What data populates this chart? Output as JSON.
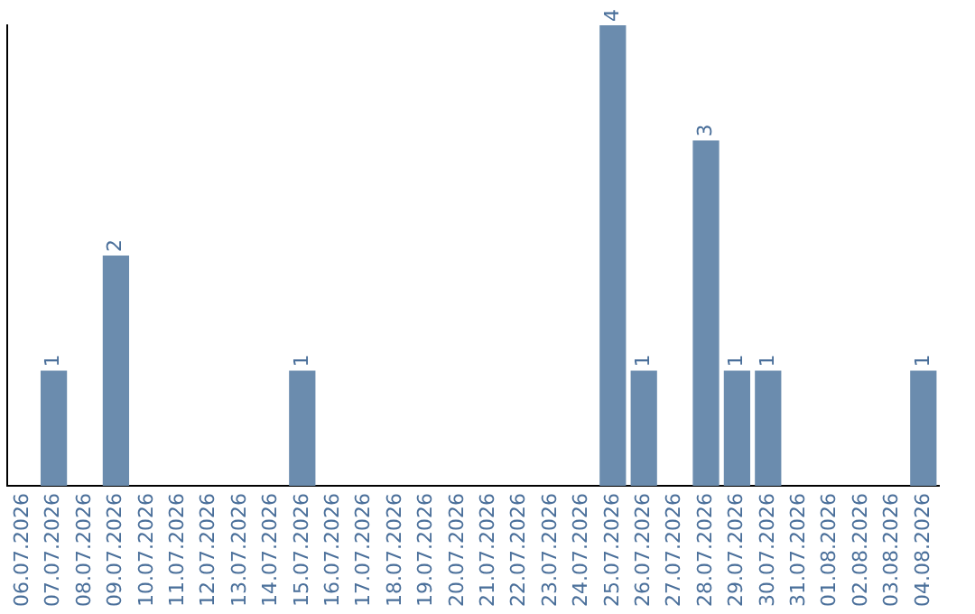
{
  "chart_data": {
    "type": "bar",
    "categories": [
      "06.07.2026",
      "07.07.2026",
      "08.07.2026",
      "09.07.2026",
      "10.07.2026",
      "11.07.2026",
      "12.07.2026",
      "13.07.2026",
      "14.07.2026",
      "15.07.2026",
      "16.07.2026",
      "17.07.2026",
      "18.07.2026",
      "19.07.2026",
      "20.07.2026",
      "21.07.2026",
      "22.07.2026",
      "23.07.2026",
      "24.07.2026",
      "25.07.2026",
      "26.07.2026",
      "27.07.2026",
      "28.07.2026",
      "29.07.2026",
      "30.07.2026",
      "31.07.2026",
      "01.08.2026",
      "02.08.2026",
      "03.08.2026",
      "04.08.2026"
    ],
    "values": [
      0,
      1,
      0,
      2,
      0,
      0,
      0,
      0,
      0,
      1,
      0,
      0,
      0,
      0,
      0,
      0,
      0,
      0,
      0,
      4,
      1,
      0,
      3,
      1,
      1,
      0,
      0,
      0,
      0,
      1
    ],
    "value_labels": [
      null,
      "1",
      null,
      "2",
      null,
      null,
      null,
      null,
      null,
      "1",
      null,
      null,
      null,
      null,
      null,
      null,
      null,
      null,
      null,
      "4",
      "1",
      null,
      "3",
      "1",
      "1",
      null,
      null,
      null,
      null,
      "1"
    ],
    "color": "#6b8cae",
    "grid": false,
    "tick_labels": "x",
    "legend": false
  }
}
